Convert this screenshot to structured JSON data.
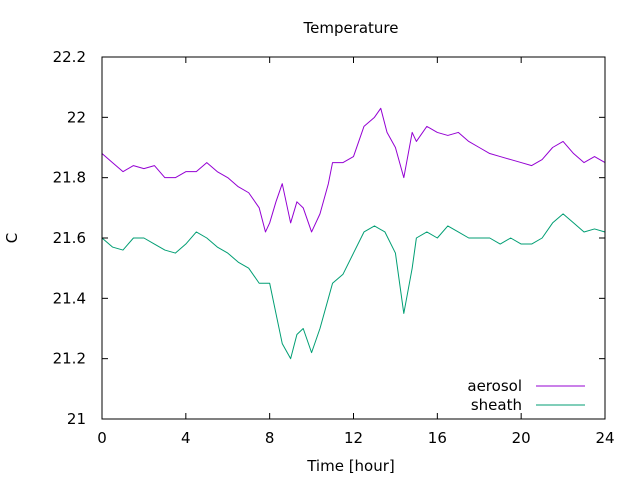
{
  "chart_data": {
    "type": "line",
    "title": "Temperature",
    "xlabel": "Time [hour]",
    "ylabel": "C",
    "xlim": [
      0,
      24
    ],
    "ylim": [
      21,
      22.2
    ],
    "x_ticks": [
      0,
      4,
      8,
      12,
      16,
      20,
      24
    ],
    "y_ticks": [
      21,
      21.2,
      21.4,
      21.6,
      21.8,
      22,
      22.2
    ],
    "x_tick_labels": [
      "0",
      "4",
      "8",
      "12",
      "16",
      "20",
      "24"
    ],
    "y_tick_labels": [
      "21",
      "21.2",
      "21.4",
      "21.6",
      "21.8",
      "22",
      "22.2"
    ],
    "grid": false,
    "legend_position": "bottom-right",
    "series": [
      {
        "name": "aerosol",
        "color": "#9400d3",
        "points": [
          [
            0,
            21.88
          ],
          [
            0.5,
            21.85
          ],
          [
            1,
            21.82
          ],
          [
            1.5,
            21.84
          ],
          [
            2,
            21.83
          ],
          [
            2.5,
            21.84
          ],
          [
            3,
            21.8
          ],
          [
            3.5,
            21.8
          ],
          [
            4,
            21.82
          ],
          [
            4.5,
            21.82
          ],
          [
            5,
            21.85
          ],
          [
            5.5,
            21.82
          ],
          [
            6,
            21.8
          ],
          [
            6.5,
            21.77
          ],
          [
            7,
            21.75
          ],
          [
            7.5,
            21.7
          ],
          [
            7.8,
            21.62
          ],
          [
            8,
            21.65
          ],
          [
            8.3,
            21.72
          ],
          [
            8.6,
            21.78
          ],
          [
            9,
            21.65
          ],
          [
            9.3,
            21.72
          ],
          [
            9.6,
            21.7
          ],
          [
            10,
            21.62
          ],
          [
            10.4,
            21.68
          ],
          [
            10.8,
            21.78
          ],
          [
            11,
            21.85
          ],
          [
            11.5,
            21.85
          ],
          [
            12,
            21.87
          ],
          [
            12.5,
            21.97
          ],
          [
            13,
            22.0
          ],
          [
            13.3,
            22.03
          ],
          [
            13.6,
            21.95
          ],
          [
            14,
            21.9
          ],
          [
            14.4,
            21.8
          ],
          [
            14.8,
            21.95
          ],
          [
            15,
            21.92
          ],
          [
            15.5,
            21.97
          ],
          [
            16,
            21.95
          ],
          [
            16.5,
            21.94
          ],
          [
            17,
            21.95
          ],
          [
            17.5,
            21.92
          ],
          [
            18,
            21.9
          ],
          [
            18.5,
            21.88
          ],
          [
            19,
            21.87
          ],
          [
            19.5,
            21.86
          ],
          [
            20,
            21.85
          ],
          [
            20.5,
            21.84
          ],
          [
            21,
            21.86
          ],
          [
            21.5,
            21.9
          ],
          [
            22,
            21.92
          ],
          [
            22.5,
            21.88
          ],
          [
            23,
            21.85
          ],
          [
            23.5,
            21.87
          ],
          [
            24,
            21.85
          ]
        ]
      },
      {
        "name": "sheath",
        "color": "#009e73",
        "points": [
          [
            0,
            21.6
          ],
          [
            0.5,
            21.57
          ],
          [
            1,
            21.56
          ],
          [
            1.5,
            21.6
          ],
          [
            2,
            21.6
          ],
          [
            2.5,
            21.58
          ],
          [
            3,
            21.56
          ],
          [
            3.5,
            21.55
          ],
          [
            4,
            21.58
          ],
          [
            4.5,
            21.62
          ],
          [
            5,
            21.6
          ],
          [
            5.5,
            21.57
          ],
          [
            6,
            21.55
          ],
          [
            6.5,
            21.52
          ],
          [
            7,
            21.5
          ],
          [
            7.5,
            21.45
          ],
          [
            8,
            21.45
          ],
          [
            8.3,
            21.35
          ],
          [
            8.6,
            21.25
          ],
          [
            9,
            21.2
          ],
          [
            9.3,
            21.28
          ],
          [
            9.6,
            21.3
          ],
          [
            10,
            21.22
          ],
          [
            10.4,
            21.3
          ],
          [
            10.8,
            21.4
          ],
          [
            11,
            21.45
          ],
          [
            11.5,
            21.48
          ],
          [
            12,
            21.55
          ],
          [
            12.5,
            21.62
          ],
          [
            13,
            21.64
          ],
          [
            13.5,
            21.62
          ],
          [
            14,
            21.55
          ],
          [
            14.4,
            21.35
          ],
          [
            14.8,
            21.5
          ],
          [
            15,
            21.6
          ],
          [
            15.5,
            21.62
          ],
          [
            16,
            21.6
          ],
          [
            16.5,
            21.64
          ],
          [
            17,
            21.62
          ],
          [
            17.5,
            21.6
          ],
          [
            18,
            21.6
          ],
          [
            18.5,
            21.6
          ],
          [
            19,
            21.58
          ],
          [
            19.5,
            21.6
          ],
          [
            20,
            21.58
          ],
          [
            20.5,
            21.58
          ],
          [
            21,
            21.6
          ],
          [
            21.5,
            21.65
          ],
          [
            22,
            21.68
          ],
          [
            22.5,
            21.65
          ],
          [
            23,
            21.62
          ],
          [
            23.5,
            21.63
          ],
          [
            24,
            21.62
          ]
        ]
      }
    ]
  }
}
